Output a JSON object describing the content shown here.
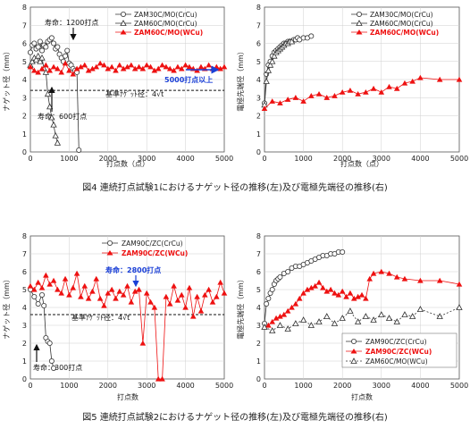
{
  "figure4": {
    "caption": "図4 連続打点試験1におけるナゲット径の推移(左)及び電極先端径の推移(右)",
    "left": {
      "type": "line",
      "xlabel": "打点数（点）",
      "ylabel": "ナゲット径（mm）",
      "xlim": [
        0,
        5000
      ],
      "ylim": [
        0,
        8
      ],
      "xticks": [
        "0",
        "1000",
        "2000",
        "3000",
        "4000",
        "5000"
      ],
      "yticks": [
        "0",
        "1",
        "2",
        "3",
        "4",
        "5",
        "6",
        "7",
        "8"
      ],
      "legend": [
        "ZAM30C/MO(CrCu)",
        "ZAM60C/MO(CrCu)",
        "ZAM60C/MO(WCu)"
      ],
      "annotations": {
        "life1": "寿命：1200打点",
        "life2": "寿命：600打点",
        "over": "5000打点以上",
        "ref": "基準ﾅｹﾞｯﾄ径：4√t"
      }
    },
    "right": {
      "type": "line",
      "xlabel": "打点数（点）",
      "ylabel": "電極先端径（mm）",
      "xlim": [
        0,
        5000
      ],
      "ylim": [
        0,
        8
      ],
      "xticks": [
        "0",
        "1000",
        "2000",
        "3000",
        "4000",
        "5000"
      ],
      "yticks": [
        "0",
        "1",
        "2",
        "3",
        "4",
        "5",
        "6",
        "7",
        "8"
      ],
      "legend": [
        "ZAM30C/MO(CrCu)",
        "ZAM60C/MO(CrCu)",
        "ZAM60C/MO(WCu)"
      ]
    }
  },
  "figure5": {
    "caption": "図5 連続打点試験2におけるナゲット径の推移(左)及び電極先端径の推移(右)",
    "left": {
      "type": "line",
      "xlabel": "打点数",
      "ylabel": "ナゲット径（mm）",
      "xlim": [
        0,
        5000
      ],
      "ylim": [
        0,
        8
      ],
      "xticks": [
        "0",
        "1000",
        "2000",
        "3000",
        "4000",
        "5000"
      ],
      "yticks": [
        "0",
        "1",
        "2",
        "3",
        "4",
        "5",
        "6",
        "7",
        "8"
      ],
      "legend": [
        "ZAM90C/ZC(CrCu)",
        "ZAM90C/ZC(WCu)"
      ],
      "annotations": {
        "life1": "寿命：2800打点",
        "life2": "寿命：300打点",
        "ref": "基準ﾅｹﾞｯﾄ径：4√t"
      }
    },
    "right": {
      "type": "line",
      "xlabel": "打点数",
      "ylabel": "電極先端径（mm）",
      "xlim": [
        0,
        5000
      ],
      "ylim": [
        0,
        8
      ],
      "xticks": [
        "0",
        "1000",
        "2000",
        "3000",
        "4000",
        "5000"
      ],
      "yticks": [
        "0",
        "1",
        "2",
        "3",
        "4",
        "5",
        "6",
        "7",
        "8"
      ],
      "legend": [
        "ZAM90C/ZC(CrCu)",
        "ZAM90C/ZC(WCu)",
        "ZAM60C/MO(WCu)"
      ]
    }
  },
  "chart_data": [
    {
      "id": "f4L",
      "type": "line",
      "xlim": [
        0,
        5000
      ],
      "ylim": [
        0,
        8
      ],
      "reference_line": 3.4,
      "series": [
        {
          "marker": "circle",
          "color": "#333333",
          "x": [
            0,
            50,
            100,
            150,
            200,
            250,
            300,
            350,
            400,
            450,
            500,
            550,
            600,
            650,
            700,
            750,
            800,
            850,
            900,
            950,
            1000,
            1050,
            1100,
            1150,
            1200,
            1250
          ],
          "y": [
            5.5,
            5.9,
            6.0,
            5.7,
            5.8,
            6.1,
            5.6,
            5.9,
            5.8,
            6.1,
            6.2,
            6.3,
            6.0,
            5.7,
            5.8,
            5.4,
            5.2,
            5.0,
            5.3,
            5.6,
            4.9,
            4.8,
            4.6,
            4.5,
            4.4,
            0.1
          ]
        },
        {
          "marker": "triangle-open",
          "color": "#333333",
          "x": [
            0,
            50,
            100,
            150,
            200,
            250,
            300,
            350,
            400,
            450,
            500,
            550,
            600,
            650,
            700
          ],
          "y": [
            4.8,
            5.0,
            5.2,
            5.1,
            5.3,
            5.0,
            5.2,
            4.6,
            4.4,
            3.2,
            2.5,
            1.9,
            1.5,
            0.9,
            0.5
          ]
        },
        {
          "marker": "triangle-filled",
          "color": "#ee1111",
          "x": [
            0,
            100,
            200,
            300,
            400,
            500,
            600,
            700,
            800,
            900,
            1000,
            1100,
            1200,
            1300,
            1400,
            1500,
            1600,
            1700,
            1800,
            1900,
            2000,
            2100,
            2200,
            2300,
            2400,
            2500,
            2600,
            2700,
            2800,
            2900,
            3000,
            3100,
            3200,
            3300,
            3400,
            3500,
            3600,
            3700,
            3800,
            3900,
            4000,
            4100,
            4200,
            4300,
            4400,
            4500,
            4600,
            4700,
            4800,
            4900,
            5000
          ],
          "y": [
            4.7,
            4.5,
            4.4,
            4.6,
            4.8,
            4.5,
            4.7,
            4.6,
            4.4,
            4.9,
            4.5,
            4.3,
            4.6,
            4.7,
            4.8,
            4.5,
            4.6,
            4.7,
            4.9,
            4.8,
            4.6,
            4.7,
            4.5,
            4.8,
            4.6,
            4.7,
            4.8,
            4.6,
            4.7,
            4.6,
            4.8,
            4.7,
            4.5,
            4.6,
            4.8,
            4.7,
            4.6,
            4.5,
            4.7,
            4.6,
            4.8,
            4.7,
            4.6,
            4.5,
            4.7,
            4.6,
            4.8,
            4.6,
            4.7,
            4.6,
            4.7
          ]
        }
      ]
    },
    {
      "id": "f4R",
      "type": "line",
      "xlim": [
        0,
        5000
      ],
      "ylim": [
        0,
        8
      ],
      "series": [
        {
          "marker": "circle",
          "color": "#333333",
          "x": [
            0,
            50,
            100,
            150,
            200,
            250,
            300,
            350,
            400,
            450,
            500,
            550,
            600,
            650,
            700,
            750,
            800,
            850,
            900,
            1000,
            1100,
            1200
          ],
          "y": [
            2.7,
            4.3,
            4.8,
            5.0,
            5.3,
            5.5,
            5.6,
            5.7,
            5.8,
            5.9,
            6.0,
            6.0,
            6.1,
            6.1,
            6.1,
            6.2,
            6.2,
            6.3,
            6.2,
            6.3,
            6.3,
            6.4
          ]
        },
        {
          "marker": "triangle-open",
          "color": "#333333",
          "x": [
            0,
            50,
            100,
            150,
            200,
            250,
            300,
            350,
            400,
            450,
            500,
            550,
            600,
            650,
            700
          ],
          "y": [
            2.6,
            3.9,
            4.5,
            4.8,
            5.0,
            5.3,
            5.5,
            5.6,
            5.7,
            5.8,
            5.9,
            6.0,
            6.0,
            6.1,
            6.1
          ]
        },
        {
          "marker": "triangle-filled",
          "color": "#ee1111",
          "x": [
            0,
            200,
            400,
            600,
            800,
            1000,
            1200,
            1400,
            1600,
            1800,
            2000,
            2200,
            2400,
            2600,
            2800,
            3000,
            3200,
            3400,
            3600,
            3800,
            4000,
            4500,
            5000
          ],
          "y": [
            2.4,
            2.8,
            2.7,
            2.9,
            3.0,
            2.8,
            3.1,
            3.2,
            3.0,
            3.1,
            3.3,
            3.4,
            3.2,
            3.3,
            3.5,
            3.3,
            3.6,
            3.5,
            3.8,
            3.9,
            4.1,
            4.0,
            4.0
          ]
        }
      ]
    },
    {
      "id": "f5L",
      "type": "line",
      "xlim": [
        0,
        5000
      ],
      "ylim": [
        0,
        8
      ],
      "reference_line": 3.6,
      "series": [
        {
          "marker": "circle",
          "color": "#333333",
          "x": [
            0,
            100,
            200,
            300,
            350,
            400,
            450,
            500,
            550,
            600
          ],
          "y": [
            5.0,
            4.6,
            4.2,
            4.7,
            4.1,
            2.3,
            2.1,
            2.0,
            1.0,
            0.6
          ]
        },
        {
          "marker": "triangle-filled",
          "color": "#ee1111",
          "x": [
            0,
            100,
            200,
            300,
            400,
            500,
            600,
            700,
            800,
            900,
            1000,
            1100,
            1200,
            1300,
            1400,
            1500,
            1600,
            1700,
            1800,
            1900,
            2000,
            2100,
            2200,
            2300,
            2400,
            2500,
            2600,
            2700,
            2800,
            2900,
            3000,
            3100,
            3200,
            3300,
            3400,
            3500,
            3600,
            3700,
            3800,
            3900,
            4000,
            4100,
            4200,
            4300,
            4400,
            4500,
            4600,
            4700,
            4800,
            4900,
            5000
          ],
          "y": [
            5.2,
            5.0,
            5.4,
            5.1,
            5.8,
            5.3,
            5.5,
            5.0,
            4.8,
            5.6,
            4.7,
            5.1,
            5.9,
            4.6,
            5.2,
            4.5,
            4.9,
            5.6,
            4.5,
            4.1,
            4.8,
            5.0,
            4.5,
            4.9,
            4.7,
            5.2,
            4.3,
            4.9,
            5.0,
            2.0,
            4.8,
            4.3,
            4.0,
            0.0,
            0.0,
            4.6,
            4.2,
            5.2,
            4.4,
            4.7,
            4.0,
            5.1,
            3.5,
            4.6,
            3.8,
            4.7,
            5.0,
            4.3,
            4.6,
            5.4,
            4.8
          ]
        }
      ]
    },
    {
      "id": "f5R",
      "type": "line",
      "xlim": [
        0,
        5000
      ],
      "ylim": [
        0,
        8
      ],
      "series": [
        {
          "marker": "circle",
          "color": "#333333",
          "x": [
            0,
            50,
            100,
            150,
            200,
            250,
            300,
            350,
            400,
            500,
            600,
            700,
            800,
            900,
            1000,
            1100,
            1200,
            1300,
            1400,
            1500,
            1600,
            1700,
            1800,
            1900,
            2000
          ],
          "y": [
            3.1,
            4.2,
            4.5,
            4.8,
            5.0,
            5.3,
            5.5,
            5.6,
            5.7,
            5.9,
            6.0,
            6.2,
            6.3,
            6.3,
            6.4,
            6.5,
            6.6,
            6.7,
            6.8,
            6.9,
            6.9,
            7.0,
            7.0,
            7.1,
            7.1
          ]
        },
        {
          "marker": "triangle-filled",
          "color": "#ee1111",
          "x": [
            0,
            100,
            200,
            300,
            400,
            500,
            600,
            700,
            800,
            900,
            1000,
            1100,
            1200,
            1300,
            1400,
            1500,
            1600,
            1700,
            1800,
            1900,
            2000,
            2100,
            2200,
            2300,
            2400,
            2500,
            2600,
            2700,
            2800,
            3000,
            3200,
            3400,
            3600,
            4000,
            4500,
            5000
          ],
          "y": [
            2.9,
            3.0,
            3.2,
            3.4,
            3.5,
            3.6,
            3.8,
            4.0,
            4.2,
            4.5,
            4.8,
            5.0,
            5.1,
            5.2,
            5.4,
            5.1,
            4.9,
            5.0,
            4.8,
            4.7,
            4.9,
            4.6,
            4.8,
            4.5,
            4.6,
            4.7,
            4.5,
            5.6,
            5.9,
            6.0,
            5.9,
            5.7,
            5.6,
            5.5,
            5.5,
            5.3
          ]
        },
        {
          "marker": "triangle-open",
          "color": "#333333",
          "dashed": true,
          "x": [
            0,
            200,
            400,
            600,
            800,
            1000,
            1200,
            1400,
            1600,
            1800,
            2000,
            2200,
            2400,
            2600,
            2800,
            3000,
            3200,
            3400,
            3600,
            3800,
            4000,
            4500,
            5000
          ],
          "y": [
            2.9,
            2.7,
            3.0,
            2.8,
            3.1,
            3.3,
            3.0,
            3.2,
            3.5,
            3.1,
            3.4,
            3.8,
            3.2,
            3.5,
            3.3,
            3.6,
            3.4,
            3.2,
            3.6,
            3.5,
            3.9,
            3.5,
            4.0
          ]
        }
      ]
    }
  ]
}
